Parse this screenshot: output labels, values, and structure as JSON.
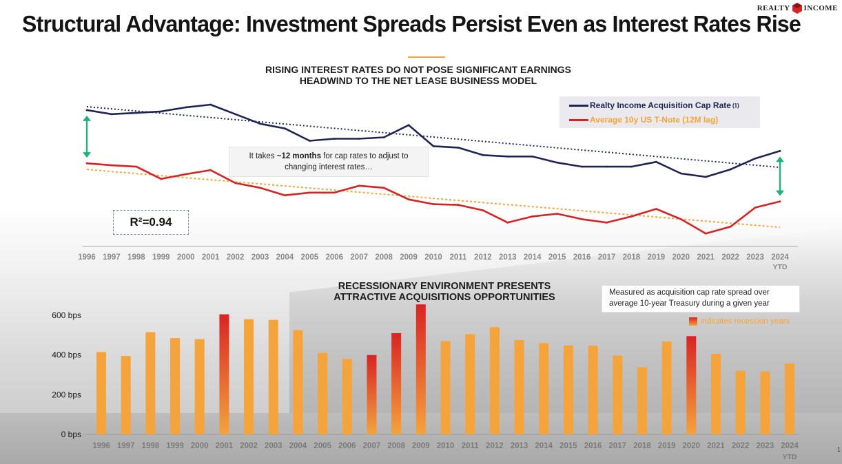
{
  "header": {
    "title": "Structural Advantage: Investment Spreads Persist Even as Interest Rates Rise",
    "logo_left": "REALTY",
    "logo_right": "INCOME",
    "logo_icon": "realty-income-logo-icon",
    "page_number": "1"
  },
  "colors": {
    "navy": "#1f2552",
    "red": "#d42323",
    "orange": "#f5a33b",
    "teal": "#1fb37a"
  },
  "top_section": {
    "title_line1": "RISING INTEREST RATES DO NOT POSE SIGNIFICANT EARNINGS",
    "title_line2": "HEADWIND TO THE NET LEASE BUSINESS MODEL",
    "legend": {
      "series1": "Realty Income Acquisition Cap Rate",
      "series1_note": "(1)",
      "series2": "Average 10y US T-Note (12M lag)"
    },
    "callout_line1_pre": "It takes ",
    "callout_line1_bold": "~12 months",
    "callout_line1_post": " for cap rates to adjust to",
    "callout_line2": "changing interest rates…",
    "r2_label": "R²=0.94",
    "ytd_label": "YTD"
  },
  "bottom_section": {
    "title_line1": "RECESSIONARY ENVIRONMENT PRESENTS",
    "title_line2": "ATTRACTIVE ACQUISITIONS OPPORTUNITIES",
    "callout_line1": "Measured as acquisition cap rate spread over",
    "callout_line2": "average 10-year Treasury during a given year",
    "recession_note": "indicates recession years",
    "ytd_label": "YTD"
  },
  "chart_data": [
    {
      "type": "line",
      "title": "RISING INTEREST RATES DO NOT POSE SIGNIFICANT EARNINGS HEADWIND TO THE NET LEASE BUSINESS MODEL",
      "xlabel": "",
      "ylabel": "",
      "yaxis_shown": false,
      "y_units": "relative index (no axis shown)",
      "categories": [
        "1996",
        "1997",
        "1998",
        "1999",
        "2000",
        "2001",
        "2002",
        "2003",
        "2004",
        "2005",
        "2006",
        "2007",
        "2008",
        "2009",
        "2010",
        "2011",
        "2012",
        "2013",
        "2014",
        "2015",
        "2016",
        "2017",
        "2018",
        "2019",
        "2020",
        "2021",
        "2022",
        "2023",
        "2024"
      ],
      "ylim": [
        0,
        210
      ],
      "series": [
        {
          "name": "Realty Income Acquisition Cap Rate",
          "color": "navy",
          "values": [
            200,
            194,
            196,
            198,
            204,
            208,
            194,
            180,
            173,
            155,
            158,
            158,
            160,
            178,
            147,
            145,
            134,
            132,
            132,
            123,
            117,
            117,
            117,
            124,
            107,
            102,
            113,
            129,
            140
          ],
          "trendline": [
            205,
            116
          ]
        },
        {
          "name": "Average 10y US T-Note (12M lag)",
          "color": "red",
          "values": [
            122,
            119,
            117,
            99,
            106,
            112,
            93,
            86,
            75,
            79,
            79,
            89,
            86,
            69,
            62,
            61,
            53,
            35,
            44,
            48,
            40,
            35,
            44,
            55,
            40,
            19,
            29,
            57,
            66
          ],
          "trendline": [
            113,
            28
          ]
        }
      ],
      "annotations": [
        "R²=0.94",
        "It takes ~12 months for cap rates to adjust to changing interest rates…"
      ]
    },
    {
      "type": "bar",
      "title": "RECESSIONARY ENVIRONMENT PRESENTS ATTRACTIVE ACQUISITIONS OPPORTUNITIES",
      "xlabel": "",
      "ylabel": "bps",
      "ylim": [
        0,
        650
      ],
      "yticks": [
        0,
        200,
        400,
        600
      ],
      "ytick_labels": [
        "0 bps",
        "200 bps",
        "400 bps",
        "600 bps"
      ],
      "categories": [
        "1996",
        "1997",
        "1998",
        "1999",
        "2000",
        "2001",
        "2002",
        "2003",
        "2004",
        "2005",
        "2006",
        "2007",
        "2008",
        "2009",
        "2010",
        "2011",
        "2012",
        "2013",
        "2014",
        "2015",
        "2016",
        "2017",
        "2018",
        "2019",
        "2020",
        "2021",
        "2022",
        "2023",
        "2024"
      ],
      "values": [
        415,
        395,
        515,
        485,
        480,
        605,
        580,
        577,
        525,
        410,
        380,
        400,
        510,
        655,
        470,
        505,
        540,
        475,
        460,
        448,
        447,
        397,
        338,
        468,
        495,
        406,
        320,
        317,
        357
      ],
      "recession_years": [
        "2001",
        "2007",
        "2008",
        "2009",
        "2020"
      ]
    }
  ]
}
